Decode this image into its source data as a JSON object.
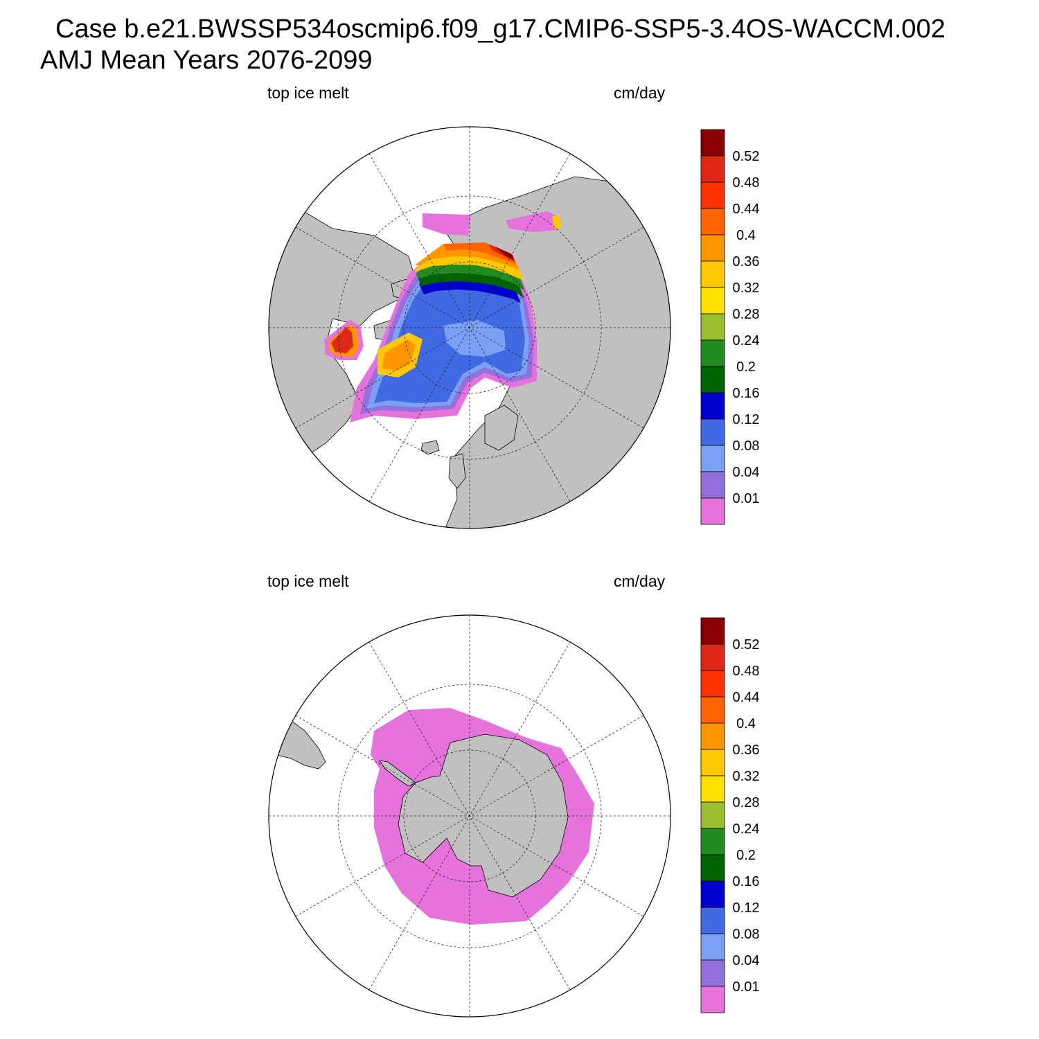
{
  "title_line1": "Case b.e21.BWSSP534oscmip6.f09_g17.CMIP6-SSP5-3.4OS-WACCM.002",
  "title_line2": "AMJ Mean   Years 2076-2099",
  "panels": [
    {
      "id": "north",
      "left_label": "top ice melt",
      "right_label": "cm/day",
      "hemisphere": "Northern"
    },
    {
      "id": "south",
      "left_label": "top ice melt",
      "right_label": "cm/day",
      "hemisphere": "Southern"
    }
  ],
  "colorbar": {
    "labels": [
      "0.52",
      "0.48",
      "0.44",
      "0.4",
      "0.36",
      "0.32",
      "0.28",
      "0.24",
      "0.2",
      "0.16",
      "0.12",
      "0.08",
      "0.04",
      "0.01"
    ],
    "colors": [
      "#8b0000",
      "#dc2814",
      "#ff3200",
      "#ff6400",
      "#ff9600",
      "#ffc800",
      "#ffe100",
      "#99be32",
      "#228b22",
      "#006400",
      "#0000cd",
      "#4169e1",
      "#7ba1f5",
      "#9370db",
      "#e673dc"
    ]
  },
  "colors": {
    "land": "#c0c0c0",
    "background": "#ffffff"
  }
}
